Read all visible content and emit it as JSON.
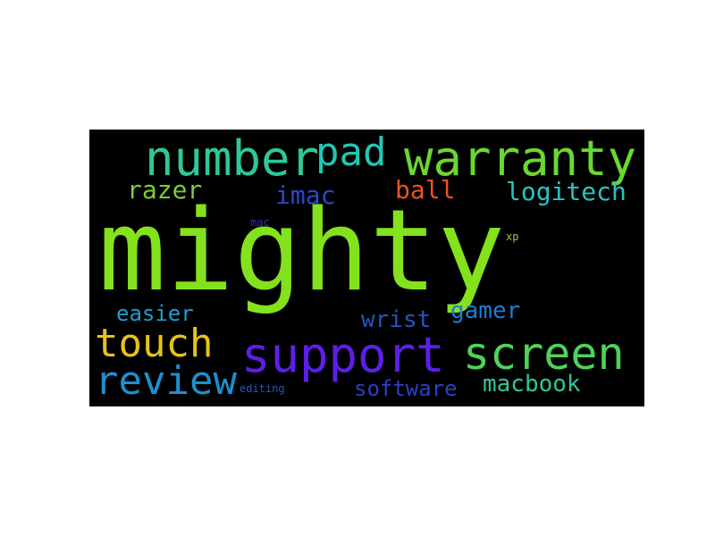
{
  "background": "#000000",
  "words": [
    {
      "text": "mighty",
      "color": "#84e11d"
    },
    {
      "text": "number",
      "color": "#2ec89a"
    },
    {
      "text": "pad",
      "color": "#21c8b3"
    },
    {
      "text": "warranty",
      "color": "#6ad731"
    },
    {
      "text": "razer",
      "color": "#7ccd3a"
    },
    {
      "text": "imac",
      "color": "#2a49c8"
    },
    {
      "text": "ball",
      "color": "#e8541f"
    },
    {
      "text": "logitech",
      "color": "#27c5c2"
    },
    {
      "text": "mac",
      "color": "#3a28b8"
    },
    {
      "text": "xp",
      "color": "#a4c23a"
    },
    {
      "text": "easier",
      "color": "#1f9fcf"
    },
    {
      "text": "wrist",
      "color": "#2155c2"
    },
    {
      "text": "gamer",
      "color": "#1f7dd0"
    },
    {
      "text": "touch",
      "color": "#e6c21c"
    },
    {
      "text": "support",
      "color": "#5b1fe8"
    },
    {
      "text": "screen",
      "color": "#4ed35a"
    },
    {
      "text": "review",
      "color": "#1e8fd2"
    },
    {
      "text": "editing",
      "color": "#2a5ab4"
    },
    {
      "text": "software",
      "color": "#2c3fc4"
    },
    {
      "text": "macbook",
      "color": "#2fc59a"
    }
  ]
}
